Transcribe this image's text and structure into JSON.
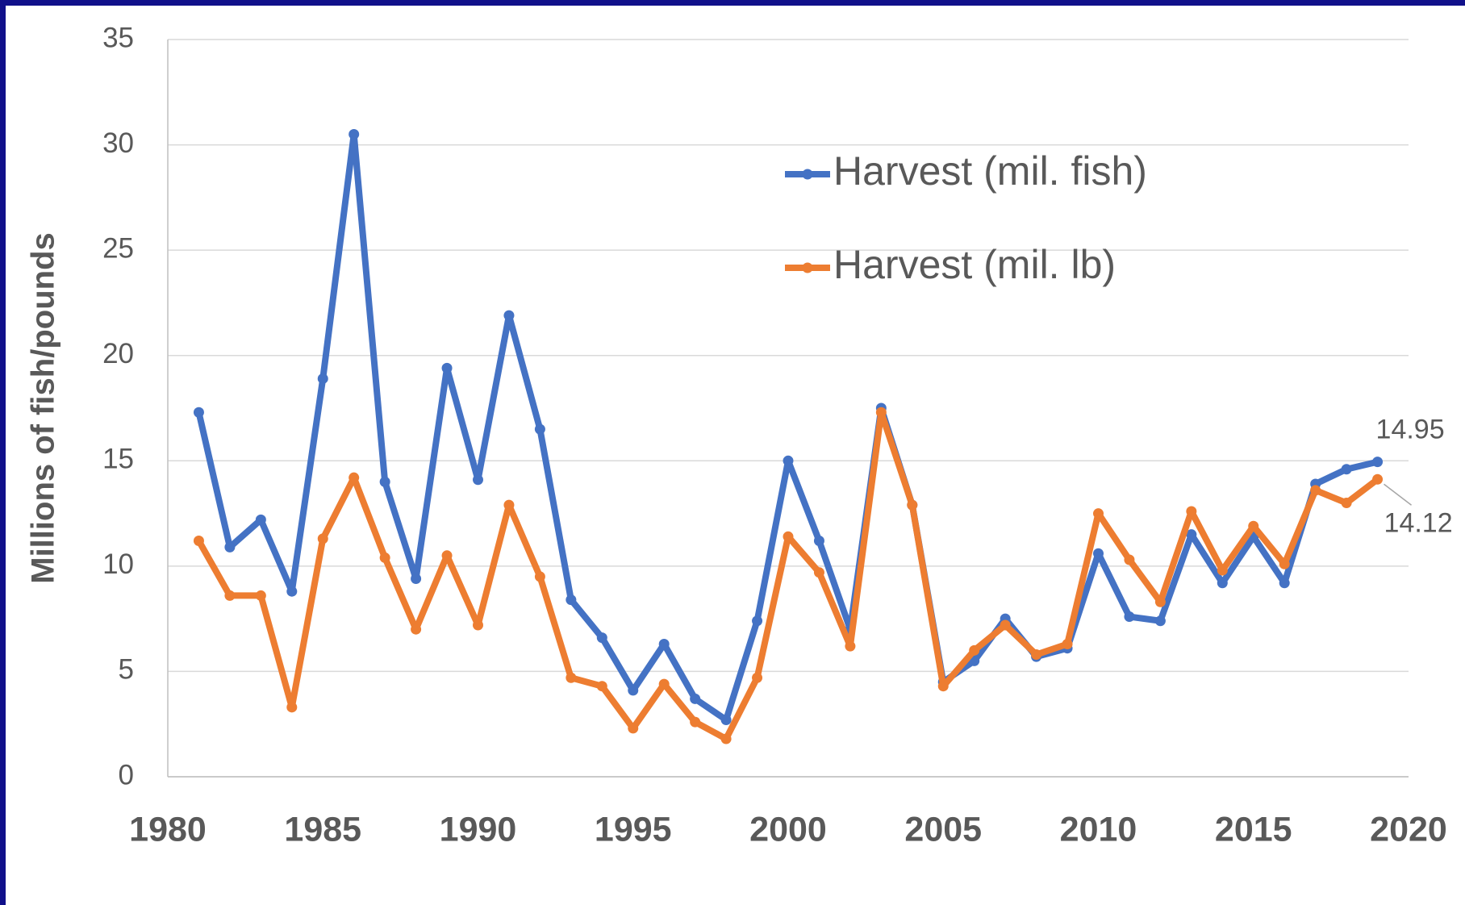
{
  "chart_data": {
    "type": "line",
    "y_label": "Millions of fish/pounds",
    "x": [
      1981,
      1982,
      1983,
      1984,
      1985,
      1986,
      1987,
      1988,
      1989,
      1990,
      1991,
      1992,
      1993,
      1994,
      1995,
      1996,
      1997,
      1998,
      1999,
      2000,
      2001,
      2002,
      2003,
      2004,
      2005,
      2006,
      2007,
      2008,
      2009,
      2010,
      2011,
      2012,
      2013,
      2014,
      2015,
      2016,
      2017,
      2018,
      2019
    ],
    "series": [
      {
        "name": "Harvest (mil. fish)",
        "color": "#4472c4",
        "values": [
          17.3,
          10.9,
          12.2,
          8.8,
          18.9,
          30.5,
          14.0,
          9.4,
          19.4,
          14.1,
          21.9,
          16.5,
          8.4,
          6.6,
          4.1,
          6.3,
          3.7,
          2.7,
          7.4,
          15.0,
          11.2,
          7.0,
          17.5,
          12.9,
          4.5,
          5.5,
          7.5,
          5.7,
          6.1,
          10.6,
          7.6,
          7.4,
          11.5,
          9.2,
          11.4,
          9.2,
          13.9,
          14.6,
          14.95
        ],
        "value_labels": [
          null,
          null,
          null,
          null,
          null,
          null,
          null,
          null,
          null,
          null,
          null,
          null,
          null,
          null,
          null,
          null,
          null,
          null,
          null,
          null,
          null,
          null,
          null,
          null,
          null,
          null,
          null,
          null,
          null,
          null,
          null,
          null,
          null,
          null,
          null,
          null,
          null,
          null,
          "14.95"
        ]
      },
      {
        "name": "Harvest (mil. lb)",
        "color": "#ed7d31",
        "values": [
          11.2,
          8.6,
          8.6,
          3.3,
          11.3,
          14.2,
          10.4,
          7.0,
          10.5,
          7.2,
          12.9,
          9.5,
          4.7,
          4.3,
          2.3,
          4.4,
          2.6,
          1.8,
          4.7,
          11.4,
          9.7,
          6.2,
          17.3,
          12.9,
          4.3,
          6.0,
          7.2,
          5.8,
          6.3,
          12.5,
          10.3,
          8.3,
          12.6,
          9.8,
          11.9,
          10.1,
          13.6,
          13.0,
          14.12
        ],
        "value_labels": [
          null,
          null,
          null,
          null,
          null,
          null,
          null,
          null,
          null,
          null,
          null,
          null,
          null,
          null,
          null,
          null,
          null,
          null,
          null,
          null,
          null,
          null,
          null,
          null,
          null,
          null,
          null,
          null,
          null,
          null,
          null,
          null,
          null,
          null,
          null,
          null,
          null,
          null,
          "14.12"
        ]
      }
    ],
    "xlim": [
      1980,
      2020
    ],
    "xticks": [
      1980,
      1985,
      1990,
      1995,
      2000,
      2005,
      2010,
      2015,
      2020
    ],
    "ylim": [
      0,
      35
    ],
    "yticks": [
      0,
      5,
      10,
      15,
      20,
      25,
      30,
      35
    ],
    "grid": true,
    "legend": "upper right"
  }
}
